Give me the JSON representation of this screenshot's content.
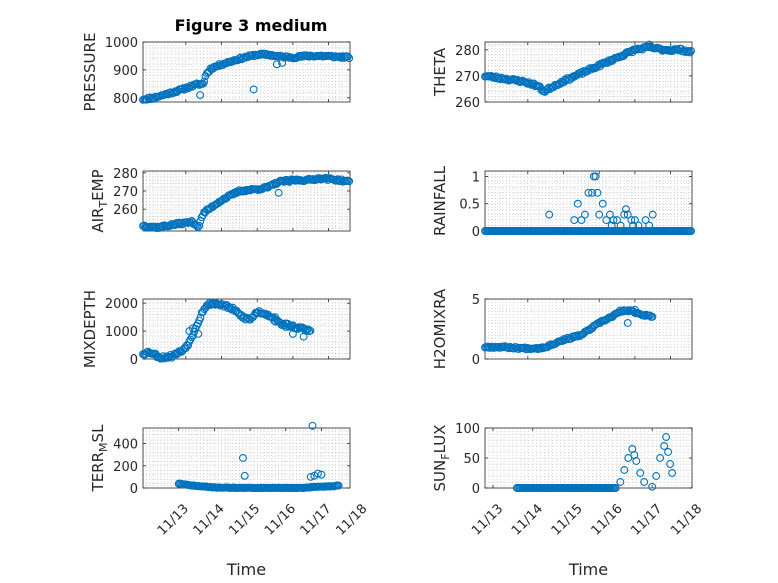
{
  "figure": {
    "title": "Figure 3 medium"
  },
  "colors": {
    "marker": "#0072BD",
    "axes": "#262626",
    "grid": "#b3b3b3"
  },
  "chart_data": [
    {
      "type": "scatter",
      "ylabel_main": "PRESSURE",
      "ylabel_sub": "",
      "ylabel_tail": "",
      "xlabel": "",
      "show_xticklabels": false,
      "xlim": [
        11.8,
        17.6
      ],
      "ylim": [
        785,
        1000
      ],
      "yticks": [
        800,
        900,
        1000
      ],
      "xticks": [
        13,
        14,
        15,
        16,
        17
      ],
      "grid": true,
      "anchors": [
        [
          11.8,
          795
        ],
        [
          12.1,
          800
        ],
        [
          12.5,
          815
        ],
        [
          12.9,
          830
        ],
        [
          13.3,
          848
        ],
        [
          13.5,
          850
        ],
        [
          13.55,
          880
        ],
        [
          13.7,
          905
        ],
        [
          14.0,
          920
        ],
        [
          14.5,
          940
        ],
        [
          15.0,
          955
        ],
        [
          15.3,
          955
        ],
        [
          15.6,
          948
        ],
        [
          16.0,
          945
        ],
        [
          16.4,
          950
        ],
        [
          16.8,
          950
        ],
        [
          17.1,
          948
        ],
        [
          17.6,
          945
        ]
      ],
      "outliers": [
        [
          13.4,
          810
        ],
        [
          14.9,
          830
        ],
        [
          15.55,
          920
        ],
        [
          15.7,
          925
        ]
      ],
      "noise": 4,
      "seed": 11
    },
    {
      "type": "scatter",
      "ylabel_main": "THETA",
      "ylabel_sub": "",
      "ylabel_tail": "",
      "xlabel": "",
      "show_xticklabels": false,
      "xlim": [
        11.8,
        17.6
      ],
      "ylim": [
        260,
        283
      ],
      "yticks": [
        260,
        270,
        280
      ],
      "xticks": [
        13,
        14,
        15,
        16,
        17
      ],
      "grid": true,
      "anchors": [
        [
          11.8,
          270
        ],
        [
          12.3,
          269
        ],
        [
          12.8,
          268
        ],
        [
          13.1,
          267
        ],
        [
          13.3,
          266
        ],
        [
          13.45,
          264
        ],
        [
          13.7,
          266
        ],
        [
          14.0,
          268
        ],
        [
          14.5,
          271
        ],
        [
          15.0,
          274
        ],
        [
          15.5,
          277
        ],
        [
          16.0,
          280
        ],
        [
          16.4,
          281
        ],
        [
          16.8,
          280
        ],
        [
          17.3,
          280
        ],
        [
          17.6,
          279
        ]
      ],
      "outliers": [
        [
          16.4,
          282
        ]
      ],
      "noise": 0.5,
      "seed": 23
    },
    {
      "type": "scatter",
      "ylabel_main": "AIR",
      "ylabel_sub": "T",
      "ylabel_tail": "EMP",
      "xlabel": "",
      "show_xticklabels": false,
      "xlim": [
        11.8,
        17.6
      ],
      "ylim": [
        248,
        281
      ],
      "yticks": [
        260,
        270,
        280
      ],
      "xticks": [
        13,
        14,
        15,
        16,
        17
      ],
      "grid": true,
      "anchors": [
        [
          11.8,
          251
        ],
        [
          12.2,
          250
        ],
        [
          12.8,
          252
        ],
        [
          13.2,
          253
        ],
        [
          13.35,
          250
        ],
        [
          13.5,
          258
        ],
        [
          14.0,
          265
        ],
        [
          14.5,
          270
        ],
        [
          15.0,
          271
        ],
        [
          15.3,
          272
        ],
        [
          15.6,
          275
        ],
        [
          16.0,
          276
        ],
        [
          16.4,
          276
        ],
        [
          16.8,
          277
        ],
        [
          17.3,
          276
        ],
        [
          17.6,
          275
        ]
      ],
      "outliers": [
        [
          15.6,
          269
        ],
        [
          15.9,
          275
        ]
      ],
      "noise": 0.6,
      "seed": 37
    },
    {
      "type": "scatter",
      "ylabel_main": "RAINFALL",
      "ylabel_sub": "",
      "ylabel_tail": "",
      "xlabel": "",
      "show_xticklabels": false,
      "xlim": [
        11.8,
        17.6
      ],
      "ylim": [
        0,
        1.1
      ],
      "yticks": [
        0,
        0.5,
        1
      ],
      "xticks": [
        13,
        14,
        15,
        16,
        17
      ],
      "grid": true,
      "anchors": [
        [
          11.8,
          0
        ],
        [
          17.6,
          0
        ]
      ],
      "outliers": [
        [
          13.6,
          0.3
        ],
        [
          14.3,
          0.2
        ],
        [
          14.4,
          0.5
        ],
        [
          14.5,
          0.2
        ],
        [
          14.6,
          0.3
        ],
        [
          14.7,
          0.7
        ],
        [
          14.8,
          0.7
        ],
        [
          14.85,
          1.0
        ],
        [
          14.9,
          1.0
        ],
        [
          14.95,
          0.7
        ],
        [
          15.0,
          0.3
        ],
        [
          15.1,
          0.5
        ],
        [
          15.2,
          0.2
        ],
        [
          15.3,
          0.3
        ],
        [
          15.35,
          0.1
        ],
        [
          15.4,
          0.2
        ],
        [
          15.5,
          0.2
        ],
        [
          15.6,
          0.1
        ],
        [
          15.7,
          0.3
        ],
        [
          15.75,
          0.4
        ],
        [
          15.8,
          0.3
        ],
        [
          15.9,
          0.2
        ],
        [
          15.95,
          0.1
        ],
        [
          16.0,
          0.2
        ],
        [
          16.1,
          0.1
        ],
        [
          16.3,
          0.2
        ],
        [
          16.4,
          0.1
        ],
        [
          16.5,
          0.3
        ]
      ],
      "noise": 0,
      "seed": 41
    },
    {
      "type": "scatter",
      "ylabel_main": "MIXDEPTH",
      "ylabel_sub": "",
      "ylabel_tail": "",
      "xlabel": "",
      "show_xticklabels": false,
      "xlim": [
        11.8,
        17.6
      ],
      "ylim": [
        0,
        2150
      ],
      "yticks": [
        0,
        1000,
        2000
      ],
      "xticks": [
        13,
        14,
        15,
        16,
        17
      ],
      "grid": true,
      "anchors": [
        [
          11.8,
          200
        ],
        [
          12.0,
          250
        ],
        [
          12.3,
          50
        ],
        [
          12.6,
          100
        ],
        [
          12.9,
          300
        ],
        [
          13.1,
          600
        ],
        [
          13.3,
          1200
        ],
        [
          13.5,
          1800
        ],
        [
          13.7,
          2000
        ],
        [
          14.0,
          1950
        ],
        [
          14.3,
          1800
        ],
        [
          14.6,
          1500
        ],
        [
          14.8,
          1400
        ],
        [
          15.0,
          1700
        ],
        [
          15.3,
          1600
        ],
        [
          15.6,
          1300
        ],
        [
          15.9,
          1200
        ],
        [
          16.2,
          1100
        ],
        [
          16.5,
          1000
        ]
      ],
      "outliers": [
        [
          13.1,
          1000
        ],
        [
          13.2,
          1100
        ],
        [
          13.35,
          900
        ],
        [
          15.5,
          1500
        ],
        [
          15.8,
          1150
        ],
        [
          16.0,
          900
        ],
        [
          16.3,
          800
        ]
      ],
      "noise": 60,
      "seed": 53
    },
    {
      "type": "scatter",
      "ylabel_main": "H2OMIXRA",
      "ylabel_sub": "",
      "ylabel_tail": "",
      "xlabel": "",
      "show_xticklabels": false,
      "xlim": [
        11.8,
        17.6
      ],
      "ylim": [
        0,
        5
      ],
      "yticks": [
        0,
        5
      ],
      "xticks": [
        13,
        14,
        15,
        16,
        17
      ],
      "grid": true,
      "anchors": [
        [
          11.8,
          1.0
        ],
        [
          12.3,
          1.0
        ],
        [
          12.8,
          0.9
        ],
        [
          13.3,
          0.9
        ],
        [
          13.5,
          1.0
        ],
        [
          14.0,
          1.6
        ],
        [
          14.5,
          2.0
        ],
        [
          15.0,
          3.0
        ],
        [
          15.4,
          3.6
        ],
        [
          15.6,
          4.0
        ],
        [
          15.9,
          4.0
        ],
        [
          16.2,
          3.7
        ],
        [
          16.5,
          3.5
        ]
      ],
      "outliers": [
        [
          15.8,
          3.0
        ],
        [
          16.0,
          4.1
        ]
      ],
      "noise": 0.08,
      "seed": 67
    },
    {
      "type": "scatter",
      "ylabel_main": "TERR",
      "ylabel_sub": "M",
      "ylabel_tail": "SL",
      "xlabel": "Time",
      "show_xticklabels": true,
      "xticklabels": [
        "11/13",
        "11/14",
        "11/15",
        "11/16",
        "11/17",
        "11/18"
      ],
      "xlim": [
        12.0,
        17.8
      ],
      "ylim": [
        0,
        540
      ],
      "yticks": [
        0,
        200,
        400
      ],
      "xticks": [
        13,
        14,
        15,
        16,
        17,
        18
      ],
      "grid": true,
      "anchors": [
        [
          13.0,
          40
        ],
        [
          13.3,
          25
        ],
        [
          13.6,
          15
        ],
        [
          14.0,
          5
        ],
        [
          14.5,
          2
        ],
        [
          15.0,
          0
        ],
        [
          16.0,
          0
        ],
        [
          16.5,
          0
        ],
        [
          16.8,
          10
        ],
        [
          17.3,
          15
        ],
        [
          17.5,
          25
        ]
      ],
      "outliers": [
        [
          14.8,
          270
        ],
        [
          14.85,
          110
        ],
        [
          16.75,
          560
        ],
        [
          16.8,
          110
        ],
        [
          16.9,
          130
        ],
        [
          17.0,
          120
        ],
        [
          16.7,
          100
        ]
      ],
      "noise": 3,
      "seed": 71
    },
    {
      "type": "scatter",
      "ylabel_main": "SUN",
      "ylabel_sub": "F",
      "ylabel_tail": "LUX",
      "xlabel": "Time",
      "show_xticklabels": true,
      "xticklabels": [
        "11/13",
        "11/14",
        "11/15",
        "11/16",
        "11/17",
        "11/18"
      ],
      "xlim": [
        12.8,
        18.0
      ],
      "ylim": [
        0,
        100
      ],
      "yticks": [
        0,
        50,
        100
      ],
      "xticks": [
        13,
        14,
        15,
        16,
        17,
        18
      ],
      "grid": true,
      "anchors": [
        [
          13.6,
          0
        ],
        [
          16.1,
          0
        ]
      ],
      "outliers": [
        [
          16.2,
          10
        ],
        [
          16.3,
          30
        ],
        [
          16.4,
          50
        ],
        [
          16.5,
          65
        ],
        [
          16.55,
          55
        ],
        [
          16.6,
          45
        ],
        [
          16.7,
          25
        ],
        [
          16.8,
          10
        ],
        [
          17.0,
          2
        ],
        [
          17.1,
          20
        ],
        [
          17.2,
          50
        ],
        [
          17.3,
          70
        ],
        [
          17.35,
          85
        ],
        [
          17.4,
          60
        ],
        [
          17.45,
          40
        ],
        [
          17.5,
          25
        ]
      ],
      "noise": 0,
      "seed": 83
    }
  ]
}
